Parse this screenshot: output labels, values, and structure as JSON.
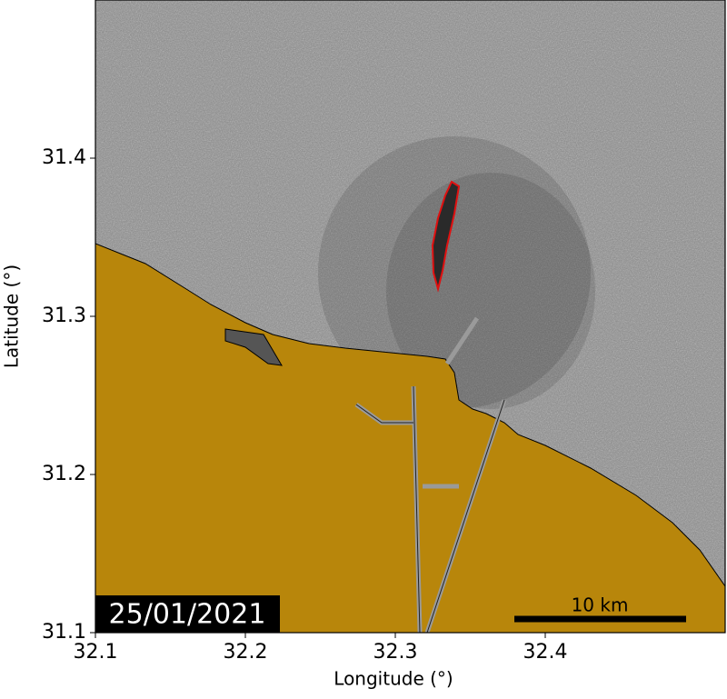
{
  "chart_data": {
    "type": "map",
    "xlabel": "Longitude (°)",
    "ylabel": "Latitude (°)",
    "xlim": [
      32.1,
      32.52
    ],
    "ylim": [
      31.1,
      31.5
    ],
    "xticks": [
      32.1,
      32.2,
      32.3,
      32.4
    ],
    "yticks": [
      31.1,
      31.2,
      31.3,
      31.4
    ],
    "date_label": "25/01/2021",
    "scale_bar_label": "10 km"
  }
}
